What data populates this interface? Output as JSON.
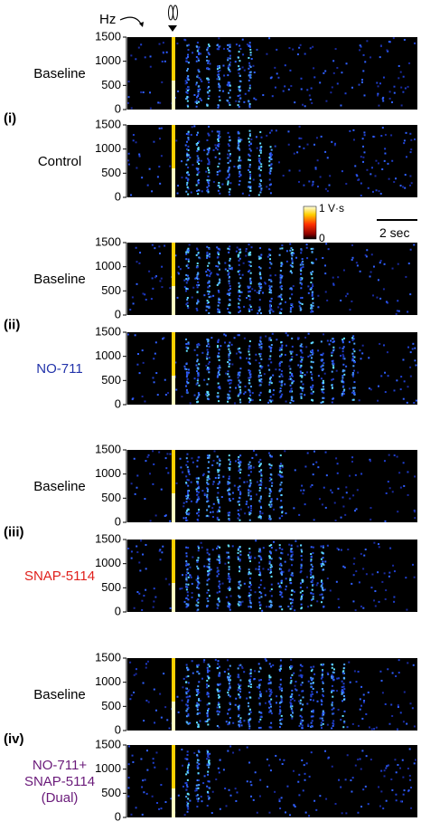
{
  "axis_unit": "Hz",
  "colorbar": {
    "max": "1 V·s",
    "min": "0"
  },
  "scale_bar": "2 sec",
  "panels": [
    {
      "label": "(i)",
      "rows": [
        {
          "condition": [
            "Baseline"
          ],
          "color": "#000000",
          "yticks": [
            0,
            500,
            1000,
            1500
          ]
        },
        {
          "condition": [
            "Control"
          ],
          "color": "#000000",
          "yticks": [
            0,
            500,
            1000,
            1500
          ]
        }
      ]
    },
    {
      "label": "(ii)",
      "rows": [
        {
          "condition": [
            "Baseline"
          ],
          "color": "#000000",
          "yticks": [
            0,
            500,
            1000,
            1500
          ]
        },
        {
          "condition": [
            "NO-711"
          ],
          "color": "#2233aa",
          "yticks": [
            0,
            500,
            1000,
            1500
          ]
        }
      ]
    },
    {
      "label": "(iii)",
      "rows": [
        {
          "condition": [
            "Baseline"
          ],
          "color": "#000000",
          "yticks": [
            0,
            500,
            1000,
            1500
          ]
        },
        {
          "condition": [
            "SNAP-5114"
          ],
          "color": "#e0201c",
          "yticks": [
            0,
            500,
            1000,
            1500
          ]
        }
      ]
    },
    {
      "label": "(iv)",
      "rows": [
        {
          "condition": [
            "Baseline"
          ],
          "color": "#000000",
          "yticks": [
            0,
            500,
            1000,
            1500
          ]
        },
        {
          "condition": [
            "NO-711+",
            "SNAP-5114",
            "(Dual)"
          ],
          "color": "#6a1a7a",
          "yticks": [
            0,
            500,
            1000,
            1500
          ]
        }
      ]
    }
  ]
}
